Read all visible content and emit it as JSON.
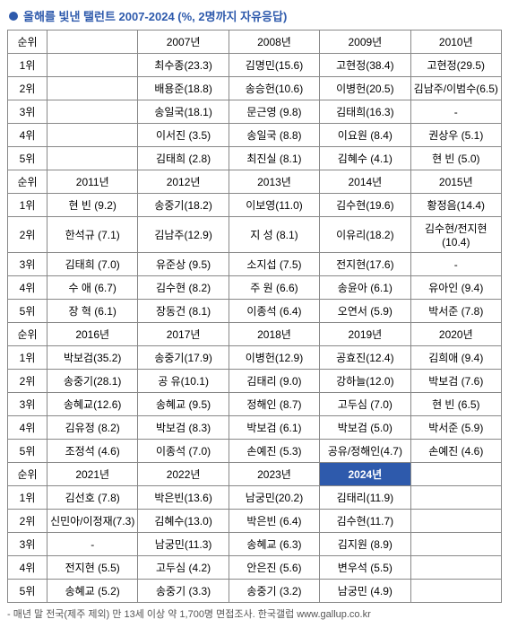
{
  "title": "올해를 빛낸 탤런트 2007-2024 (%, 2명까지 자유응답)",
  "footnote": "- 매년 말 전국(제주 제외) 만 13세 이상 약 1,700명 면접조사. 한국갤럽     www.gallup.co.kr",
  "rank_header": "순위",
  "ranks": [
    "1위",
    "2위",
    "3위",
    "4위",
    "5위"
  ],
  "colors": {
    "bullet": "#2e5aac",
    "highlight_bg": "#2e5aac",
    "highlight_text": "#ffffff",
    "border": "#888888",
    "title_text": "#2e5aac"
  },
  "sections": [
    {
      "years": [
        "2007년",
        "2008년",
        "2009년",
        "2010년"
      ],
      "highlight_index": -1,
      "rows": [
        [
          "최수종(23.3)",
          "김명민(15.6)",
          "고현정(38.4)",
          "고현정(29.5)"
        ],
        [
          "배용준(18.8)",
          "송승헌(10.6)",
          "이병헌(20.5)",
          "김남주/이범수(6.5)"
        ],
        [
          "송일국(18.1)",
          "문근영 (9.8)",
          "김태희(16.3)",
          "-"
        ],
        [
          "이서진 (3.5)",
          "송일국 (8.8)",
          "이요원 (8.4)",
          "권상우 (5.1)"
        ],
        [
          "김태희 (2.8)",
          "최진실 (8.1)",
          "김혜수 (4.1)",
          "현   빈 (5.0)"
        ]
      ]
    },
    {
      "years": [
        "2011년",
        "2012년",
        "2013년",
        "2014년",
        "2015년"
      ],
      "highlight_index": -1,
      "rows": [
        [
          "현   빈 (9.2)",
          "송중기(18.2)",
          "이보영(11.0)",
          "김수현(19.6)",
          "황정음(14.4)"
        ],
        [
          "한석규 (7.1)",
          "김남주(12.9)",
          "지   성 (8.1)",
          "이유리(18.2)",
          "김수현/전지현(10.4)"
        ],
        [
          "김태희 (7.0)",
          "유준상 (9.5)",
          "소지섭 (7.5)",
          "전지현(17.6)",
          "-"
        ],
        [
          "수   애 (6.7)",
          "김수현 (8.2)",
          "주   원 (6.6)",
          "송윤아 (6.1)",
          "유아인 (9.4)"
        ],
        [
          "장   혁 (6.1)",
          "장동건 (8.1)",
          "이종석 (6.4)",
          "오연서 (5.9)",
          "박서준 (7.8)"
        ]
      ]
    },
    {
      "years": [
        "2016년",
        "2017년",
        "2018년",
        "2019년",
        "2020년"
      ],
      "highlight_index": -1,
      "rows": [
        [
          "박보검(35.2)",
          "송중기(17.9)",
          "이병헌(12.9)",
          "공효진(12.4)",
          "김희애 (9.4)"
        ],
        [
          "송중기(28.1)",
          "공   유(10.1)",
          "김태리 (9.0)",
          "강하늘(12.0)",
          "박보검 (7.6)"
        ],
        [
          "송혜교(12.6)",
          "송혜교 (9.5)",
          "정해인 (8.7)",
          "고두심 (7.0)",
          "현   빈 (6.5)"
        ],
        [
          "김유정 (8.2)",
          "박보검 (8.3)",
          "박보검 (6.1)",
          "박보검 (5.0)",
          "박서준 (5.9)"
        ],
        [
          "조정석 (4.6)",
          "이종석 (7.0)",
          "손예진 (5.3)",
          "공유/정해인(4.7)",
          "손예진 (4.6)"
        ]
      ]
    },
    {
      "years": [
        "2021년",
        "2022년",
        "2023년",
        "2024년",
        ""
      ],
      "highlight_index": 3,
      "rows": [
        [
          "김선호 (7.8)",
          "박은빈(13.6)",
          "남궁민(20.2)",
          "김태리(11.9)",
          ""
        ],
        [
          "신민아/이정재(7.3)",
          "김혜수(13.0)",
          "박은빈 (6.4)",
          "김수현(11.7)",
          ""
        ],
        [
          "-",
          "남궁민(11.3)",
          "송혜교 (6.3)",
          "김지원 (8.9)",
          ""
        ],
        [
          "전지현 (5.5)",
          "고두심 (4.2)",
          "안은진 (5.6)",
          "변우석 (5.5)",
          ""
        ],
        [
          "송혜교 (5.2)",
          "송중기 (3.3)",
          "송중기 (3.2)",
          "남궁민 (4.9)",
          ""
        ]
      ]
    }
  ]
}
